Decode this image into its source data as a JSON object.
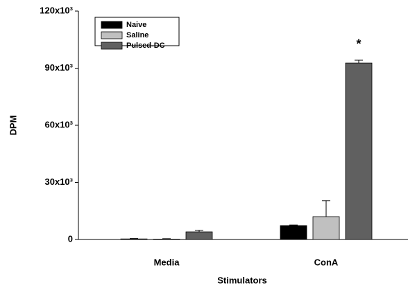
{
  "chart_data": {
    "type": "bar",
    "categories": [
      "Media",
      "ConA"
    ],
    "series": [
      {
        "name": "Naive",
        "color": "#000000",
        "values": [
          300,
          7300
        ],
        "errors": [
          200,
          300
        ]
      },
      {
        "name": "Saline",
        "color": "#c0c0c0",
        "values": [
          200,
          12000
        ],
        "errors": [
          200,
          8400
        ]
      },
      {
        "name": "Pulsed-DC",
        "color": "#606060",
        "values": [
          4000,
          92700
        ],
        "errors": [
          800,
          1500
        ]
      }
    ],
    "ylim": [
      0,
      120000
    ],
    "yticks": [
      0,
      {
        "value": 30000,
        "label": "30x10³"
      },
      {
        "value": 60000,
        "label": "60x10³"
      },
      {
        "value": 90000,
        "label": "90x10³"
      },
      {
        "value": 120000,
        "label": "120x10³"
      }
    ],
    "ylabel": "DPM",
    "xlabel": "Stimulators",
    "annotation": "*",
    "legend": "upper-left"
  }
}
